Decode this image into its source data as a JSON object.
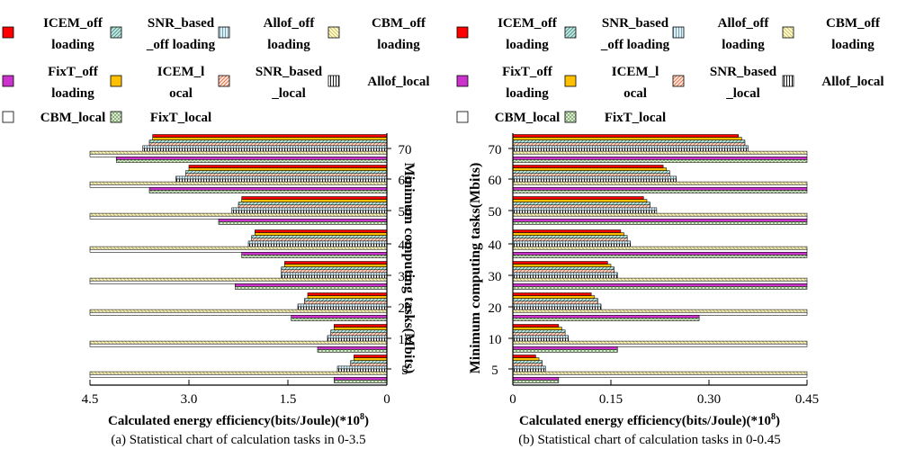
{
  "legend_items": [
    {
      "key": "icem_off",
      "lines": [
        "ICEM_off",
        "loading"
      ],
      "fill": "#ff0000",
      "pattern": "solid"
    },
    {
      "key": "snr_off",
      "lines": [
        "SNR_based",
        "_off loading"
      ],
      "fill": "#bfe6ea",
      "pattern": "diag"
    },
    {
      "key": "allof_off",
      "lines": [
        "Allof_off",
        "loading"
      ],
      "fill": "#cfecf2",
      "pattern": "vert"
    },
    {
      "key": "cbm_off",
      "lines": [
        "CBM_off",
        "loading"
      ],
      "fill": "#ffffcc",
      "pattern": "diag-y"
    },
    {
      "key": "fixt_off",
      "lines": [
        "FixT_off",
        "loading"
      ],
      "fill": "#cc33cc",
      "pattern": "solid"
    },
    {
      "key": "icem_local",
      "lines": [
        "ICEM_l",
        "ocal"
      ],
      "fill": "#ffc000",
      "pattern": "solid"
    },
    {
      "key": "snr_local",
      "lines": [
        "SNR_based",
        "_local"
      ],
      "fill": "#ffd9c8",
      "pattern": "diag-r"
    },
    {
      "key": "allof_local",
      "lines": [
        "Allof_local"
      ],
      "fill": "#ffffff",
      "pattern": "vert-k"
    },
    {
      "key": "cbm_local",
      "lines": [
        "CBM_local"
      ],
      "fill": "#ffffff",
      "pattern": "solid"
    },
    {
      "key": "fixt_local",
      "lines": [
        "FixT_local"
      ],
      "fill": "#e3f2d9",
      "pattern": "cross"
    }
  ],
  "chart_data": [
    {
      "type": "bar",
      "orientation": "horizontal",
      "caption": "(a) Statistical chart of calculation tasks in 0-3.5",
      "xlabel": "Calculated energy efficiency(bits/Joule)(*10",
      "xlabel_exp": "8",
      "xlabel_tail": ")",
      "ylabel": "Minimum computing tasks(Mbits)",
      "x_reversed": true,
      "xlim": [
        0,
        4.5
      ],
      "xticks": [
        "4.5",
        "3.0",
        "1.5",
        "0"
      ],
      "xtick_values": [
        4.5,
        3.0,
        1.5,
        0
      ],
      "categories": [
        "70",
        "60",
        "50",
        "40",
        "30",
        "20",
        "10",
        "5"
      ],
      "series": [
        {
          "key": "icem_off",
          "values": [
            3.55,
            3.0,
            2.2,
            2.0,
            1.55,
            1.2,
            0.8,
            0.5
          ]
        },
        {
          "key": "icem_local",
          "values": [
            3.55,
            3.0,
            2.2,
            2.0,
            1.55,
            1.2,
            0.8,
            0.5
          ]
        },
        {
          "key": "snr_off",
          "values": [
            3.6,
            3.05,
            2.25,
            2.05,
            1.6,
            1.25,
            0.85,
            0.55
          ]
        },
        {
          "key": "snr_local",
          "values": [
            3.6,
            3.05,
            2.25,
            2.05,
            1.6,
            1.25,
            0.85,
            0.55
          ]
        },
        {
          "key": "allof_off",
          "values": [
            3.7,
            3.2,
            2.35,
            2.1,
            1.6,
            1.35,
            0.9,
            0.75
          ]
        },
        {
          "key": "allof_local",
          "values": [
            3.7,
            3.2,
            2.35,
            2.1,
            1.6,
            1.35,
            0.9,
            0.75
          ]
        },
        {
          "key": "cbm_off",
          "values": [
            4.5,
            4.5,
            4.5,
            4.5,
            4.5,
            4.5,
            4.5,
            4.5
          ]
        },
        {
          "key": "cbm_local",
          "values": [
            4.5,
            4.5,
            4.5,
            4.5,
            4.5,
            4.5,
            4.5,
            4.5
          ]
        },
        {
          "key": "fixt_off",
          "values": [
            4.1,
            3.6,
            2.55,
            2.2,
            2.3,
            1.45,
            1.05,
            0.8
          ]
        },
        {
          "key": "fixt_local",
          "values": [
            4.1,
            3.6,
            2.55,
            2.2,
            2.3,
            1.45,
            1.05,
            0.8
          ]
        }
      ]
    },
    {
      "type": "bar",
      "orientation": "horizontal",
      "caption": "(b) Statistical chart of calculation tasks in 0-0.45",
      "xlabel": "Calculated energy efficiency(bits/Joule)(*10",
      "xlabel_exp": "8",
      "xlabel_tail": ")",
      "ylabel": "Minimum computing tasks(Mbits)",
      "x_reversed": false,
      "xlim": [
        0,
        0.45
      ],
      "xticks": [
        "0",
        "0.15",
        "0.30",
        "0.45"
      ],
      "xtick_values": [
        0,
        0.15,
        0.3,
        0.45
      ],
      "categories": [
        "70",
        "60",
        "50",
        "40",
        "30",
        "20",
        "10",
        "5"
      ],
      "series": [
        {
          "key": "icem_off",
          "values": [
            0.345,
            0.23,
            0.2,
            0.165,
            0.145,
            0.12,
            0.07,
            0.035
          ]
        },
        {
          "key": "icem_local",
          "values": [
            0.35,
            0.235,
            0.205,
            0.17,
            0.15,
            0.125,
            0.075,
            0.04
          ]
        },
        {
          "key": "snr_off",
          "values": [
            0.355,
            0.24,
            0.21,
            0.175,
            0.155,
            0.13,
            0.08,
            0.045
          ]
        },
        {
          "key": "snr_local",
          "values": [
            0.355,
            0.24,
            0.21,
            0.175,
            0.155,
            0.13,
            0.08,
            0.045
          ]
        },
        {
          "key": "allof_off",
          "values": [
            0.36,
            0.25,
            0.22,
            0.18,
            0.16,
            0.135,
            0.085,
            0.05
          ]
        },
        {
          "key": "allof_local",
          "values": [
            0.36,
            0.25,
            0.22,
            0.18,
            0.16,
            0.135,
            0.085,
            0.05
          ]
        },
        {
          "key": "cbm_off",
          "values": [
            0.45,
            0.45,
            0.45,
            0.45,
            0.45,
            0.45,
            0.45,
            0.45
          ]
        },
        {
          "key": "cbm_local",
          "values": [
            0.45,
            0.45,
            0.45,
            0.45,
            0.45,
            0.45,
            0.45,
            0.45
          ]
        },
        {
          "key": "fixt_off",
          "values": [
            0.45,
            0.45,
            0.45,
            0.45,
            0.45,
            0.285,
            0.16,
            0.07
          ]
        },
        {
          "key": "fixt_local",
          "values": [
            0.45,
            0.45,
            0.45,
            0.45,
            0.45,
            0.285,
            0.16,
            0.07
          ]
        }
      ]
    }
  ]
}
